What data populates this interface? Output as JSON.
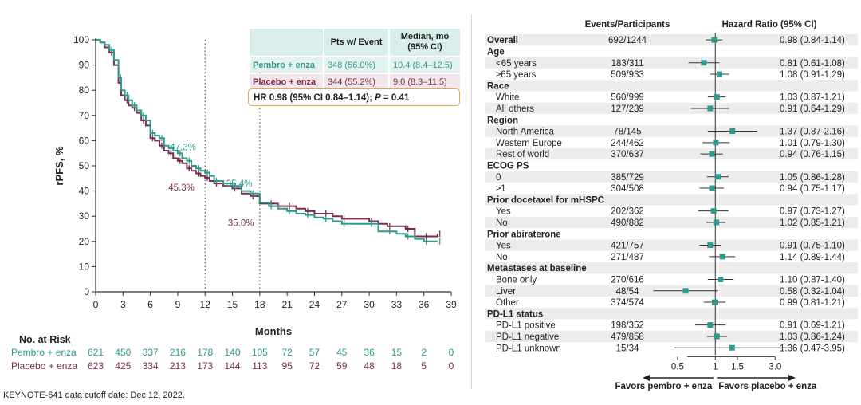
{
  "chart_data": [
    {
      "type": "line",
      "subtype": "kaplan-meier",
      "xlabel": "Months",
      "ylabel": "rPFS, %",
      "xlim": [
        0,
        39
      ],
      "ylim": [
        0,
        100
      ],
      "xticks": [
        "0",
        "3",
        "6",
        "9",
        "12",
        "15",
        "18",
        "21",
        "24",
        "27",
        "30",
        "33",
        "36",
        "39"
      ],
      "yticks": [
        "0",
        "10",
        "20",
        "30",
        "40",
        "50",
        "60",
        "70",
        "80",
        "90",
        "100"
      ],
      "reference_lines_x": [
        12,
        18
      ],
      "series": [
        {
          "name": "Pembro + enza",
          "color": "#2e9a8e",
          "x": [
            0,
            0.5,
            1,
            1.5,
            2,
            2.5,
            2.8,
            3.2,
            3.6,
            4,
            4.5,
            5,
            5.5,
            6,
            6.5,
            7,
            7.5,
            8,
            8.5,
            9,
            9.5,
            10,
            10.5,
            11,
            11.5,
            12,
            12.5,
            13,
            14,
            15,
            16,
            17,
            18,
            19,
            20,
            21,
            22,
            23,
            24,
            25,
            26,
            27,
            28,
            30,
            31,
            32,
            33,
            34,
            35,
            36,
            37,
            37.5
          ],
          "y": [
            100,
            99,
            98,
            96,
            92,
            85,
            80,
            78,
            76,
            74,
            72,
            70,
            68,
            63,
            62,
            61,
            58,
            57,
            56,
            55,
            53,
            52,
            50,
            49,
            48,
            47.3,
            46,
            44,
            43,
            42,
            40,
            39,
            35.4,
            34,
            33,
            32,
            31,
            30.5,
            29.5,
            29,
            28,
            27,
            27,
            27,
            24,
            24,
            23,
            22,
            21,
            20,
            20,
            20
          ]
        },
        {
          "name": "Placebo + enza",
          "color": "#7a2d4c",
          "x": [
            0,
            0.5,
            1,
            1.5,
            2,
            2.5,
            2.8,
            3.2,
            3.6,
            4,
            4.5,
            5,
            5.5,
            6,
            6.5,
            7,
            7.5,
            8,
            8.5,
            9,
            9.5,
            10,
            10.5,
            11,
            11.5,
            12,
            12.5,
            13,
            14,
            15,
            16,
            17,
            18,
            19,
            20,
            21,
            22,
            23,
            24,
            25,
            26,
            27,
            28,
            30,
            31,
            32,
            33,
            34,
            35,
            36,
            37,
            37.5
          ],
          "y": [
            100,
            99,
            97,
            95,
            90,
            83,
            78,
            76,
            74,
            73,
            71,
            68,
            66,
            61,
            60,
            58,
            56,
            55,
            53,
            52,
            51,
            49,
            48,
            47,
            46,
            45.3,
            44,
            43,
            42,
            41,
            39,
            38,
            35,
            35,
            34,
            34,
            33,
            32,
            31,
            31,
            30,
            29,
            29,
            28,
            27,
            26,
            26,
            25,
            22,
            22,
            22,
            23
          ]
        }
      ],
      "annotations": [
        {
          "text": "47.3%",
          "series": "Pembro + enza",
          "x": 12,
          "y": 47.3
        },
        {
          "text": "45.3%",
          "series": "Placebo + enza",
          "x": 12,
          "y": 45.3
        },
        {
          "text": "35.4%",
          "series": "Pembro + enza",
          "x": 18,
          "y": 35.4
        },
        {
          "text": "35.0%",
          "series": "Placebo + enza",
          "x": 18,
          "y": 35.0
        }
      ],
      "risk_table": {
        "title": "No. at Risk",
        "rows": [
          {
            "name": "Pembro + enza",
            "color": "#2e9a8e",
            "values": [
              "621",
              "450",
              "337",
              "216",
              "178",
              "140",
              "105",
              "72",
              "57",
              "45",
              "36",
              "15",
              "2",
              "0"
            ]
          },
          {
            "name": "Placebo + enza",
            "color": "#7a2d4c",
            "values": [
              "623",
              "425",
              "334",
              "213",
              "173",
              "144",
              "113",
              "95",
              "72",
              "59",
              "48",
              "18",
              "5",
              "0"
            ]
          }
        ]
      },
      "summary_table": {
        "headers": [
          "",
          "Pts w/ Event",
          "Median, mo (95% CI)"
        ],
        "rows": [
          {
            "name": "Pembro + enza",
            "events": "348 (56.0%)",
            "median": "10.4 (8.4–12.5)"
          },
          {
            "name": "Placebo + enza",
            "events": "344 (55.2%)",
            "median": "9.0 (8.3–11.5)"
          }
        ],
        "hr_text": "HR 0.98 (95% CI 0.84–1.14); ",
        "p_label": "P",
        "p_text": " = 0.41"
      }
    },
    {
      "type": "forest",
      "col_headers": {
        "events": "Events/Participants",
        "hr": "Hazard Ratio (95% CI)"
      },
      "xscale": "log",
      "xlim": [
        0.3,
        4.5
      ],
      "xticks": [
        {
          "label": "0.5",
          "value": 0.5
        },
        {
          "label": "1",
          "value": 1
        },
        {
          "label": "1.5",
          "value": 1.5
        },
        {
          "label": "3.0",
          "value": 3.0
        }
      ],
      "reference_value": 1,
      "arrow_left": "Favors pembro + enza",
      "arrow_right": "Favors placebo + enza",
      "point_color": "#2e9a8e",
      "rows": [
        {
          "label": "Overall",
          "header": true,
          "events": "692/1244",
          "hr_text": "0.98 (0.84-1.14)",
          "hr": 0.98,
          "lo": 0.84,
          "hi": 1.14
        },
        {
          "label": "Age",
          "header": true
        },
        {
          "label": "<65 years",
          "events": "183/311",
          "hr_text": "0.81 (0.61-1.08)",
          "hr": 0.81,
          "lo": 0.61,
          "hi": 1.08
        },
        {
          "label": "≥65 years",
          "events": "509/933",
          "hr_text": "1.08 (0.91-1.29)",
          "hr": 1.08,
          "lo": 0.91,
          "hi": 1.29
        },
        {
          "label": "Race",
          "header": true
        },
        {
          "label": "White",
          "events": "560/999",
          "hr_text": "1.03 (0.87-1.21)",
          "hr": 1.03,
          "lo": 0.87,
          "hi": 1.21
        },
        {
          "label": "All others",
          "events": "127/239",
          "hr_text": "0.91 (0.64-1.29)",
          "hr": 0.91,
          "lo": 0.64,
          "hi": 1.29
        },
        {
          "label": "Region",
          "header": true
        },
        {
          "label": "North America",
          "events": "78/145",
          "hr_text": "1.37 (0.87-2.16)",
          "hr": 1.37,
          "lo": 0.87,
          "hi": 2.16
        },
        {
          "label": "Western Europe",
          "events": "244/462",
          "hr_text": "1.01 (0.79-1.30)",
          "hr": 1.01,
          "lo": 0.79,
          "hi": 1.3
        },
        {
          "label": "Rest of world",
          "events": "370/637",
          "hr_text": "0.94 (0.76-1.15)",
          "hr": 0.94,
          "lo": 0.76,
          "hi": 1.15
        },
        {
          "label": "ECOG PS",
          "header": true
        },
        {
          "label": "0",
          "events": "385/729",
          "hr_text": "1.05 (0.86-1.28)",
          "hr": 1.05,
          "lo": 0.86,
          "hi": 1.28
        },
        {
          "label": "≥1",
          "events": "304/508",
          "hr_text": "0.94 (0.75-1.17)",
          "hr": 0.94,
          "lo": 0.75,
          "hi": 1.17
        },
        {
          "label": "Prior docetaxel for mHSPC",
          "header": true
        },
        {
          "label": "Yes",
          "events": "202/362",
          "hr_text": "0.97 (0.73-1.27)",
          "hr": 0.97,
          "lo": 0.73,
          "hi": 1.27
        },
        {
          "label": "No",
          "events": "490/882",
          "hr_text": "1.02 (0.85-1.21)",
          "hr": 1.02,
          "lo": 0.85,
          "hi": 1.21
        },
        {
          "label": "Prior abiraterone",
          "header": true
        },
        {
          "label": "Yes",
          "events": "421/757",
          "hr_text": "0.91 (0.75-1.10)",
          "hr": 0.91,
          "lo": 0.75,
          "hi": 1.1
        },
        {
          "label": "No",
          "events": "271/487",
          "hr_text": "1.14 (0.89-1.44)",
          "hr": 1.14,
          "lo": 0.89,
          "hi": 1.44
        },
        {
          "label": "Metastases at baseline",
          "header": true
        },
        {
          "label": "Bone only",
          "events": "270/616",
          "hr_text": "1.10 (0.87-1.40)",
          "hr": 1.1,
          "lo": 0.87,
          "hi": 1.4
        },
        {
          "label": "Liver",
          "events": "48/54",
          "hr_text": "0.58 (0.32-1.04)",
          "hr": 0.58,
          "lo": 0.32,
          "hi": 1.04
        },
        {
          "label": "Other",
          "events": "374/574",
          "hr_text": "0.99 (0.81-1.21)",
          "hr": 0.99,
          "lo": 0.81,
          "hi": 1.21
        },
        {
          "label": "PD-L1 status",
          "header": true
        },
        {
          "label": "PD-L1 positive",
          "events": "198/352",
          "hr_text": "0.91 (0.69-1.21)",
          "hr": 0.91,
          "lo": 0.69,
          "hi": 1.21
        },
        {
          "label": "PD-L1 negative",
          "events": "479/858",
          "hr_text": "1.03 (0.86-1.24)",
          "hr": 1.03,
          "lo": 0.86,
          "hi": 1.24
        },
        {
          "label": "PD-L1 unknown",
          "events": "15/34",
          "hr_text": "1.36 (0.47-3.95)",
          "hr": 1.36,
          "lo": 0.47,
          "hi": 3.95
        }
      ]
    }
  ],
  "footnote": "KEYNOTE-641 data cutoff date: Dec 12, 2022."
}
